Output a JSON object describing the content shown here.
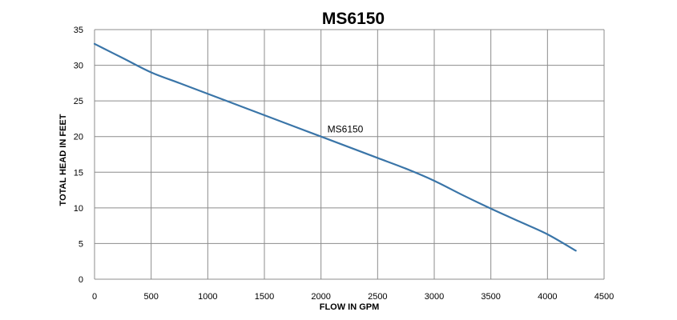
{
  "chart_data": {
    "type": "line",
    "title": "MS6150",
    "xlabel": "FLOW IN GPM",
    "ylabel": "TOTAL  HEAD IN FEET",
    "xlim": [
      0,
      4500
    ],
    "ylim": [
      0,
      35
    ],
    "x_ticks": [
      0,
      500,
      1000,
      1500,
      2000,
      2500,
      3000,
      3500,
      4000,
      4500
    ],
    "y_ticks": [
      0,
      5,
      10,
      15,
      20,
      25,
      30,
      35
    ],
    "grid": true,
    "series": [
      {
        "name": "MS6150",
        "color": "#3a75a8",
        "x": [
          0,
          250,
          500,
          750,
          1000,
          1250,
          1500,
          1750,
          2000,
          2250,
          2500,
          2750,
          3000,
          3250,
          3500,
          3750,
          4000,
          4250
        ],
        "y": [
          33,
          31,
          29,
          27.5,
          26,
          24.5,
          23,
          21.5,
          20,
          18.5,
          17,
          15.5,
          13.8,
          11.8,
          9.9,
          8.1,
          6.3,
          4
        ]
      }
    ]
  }
}
